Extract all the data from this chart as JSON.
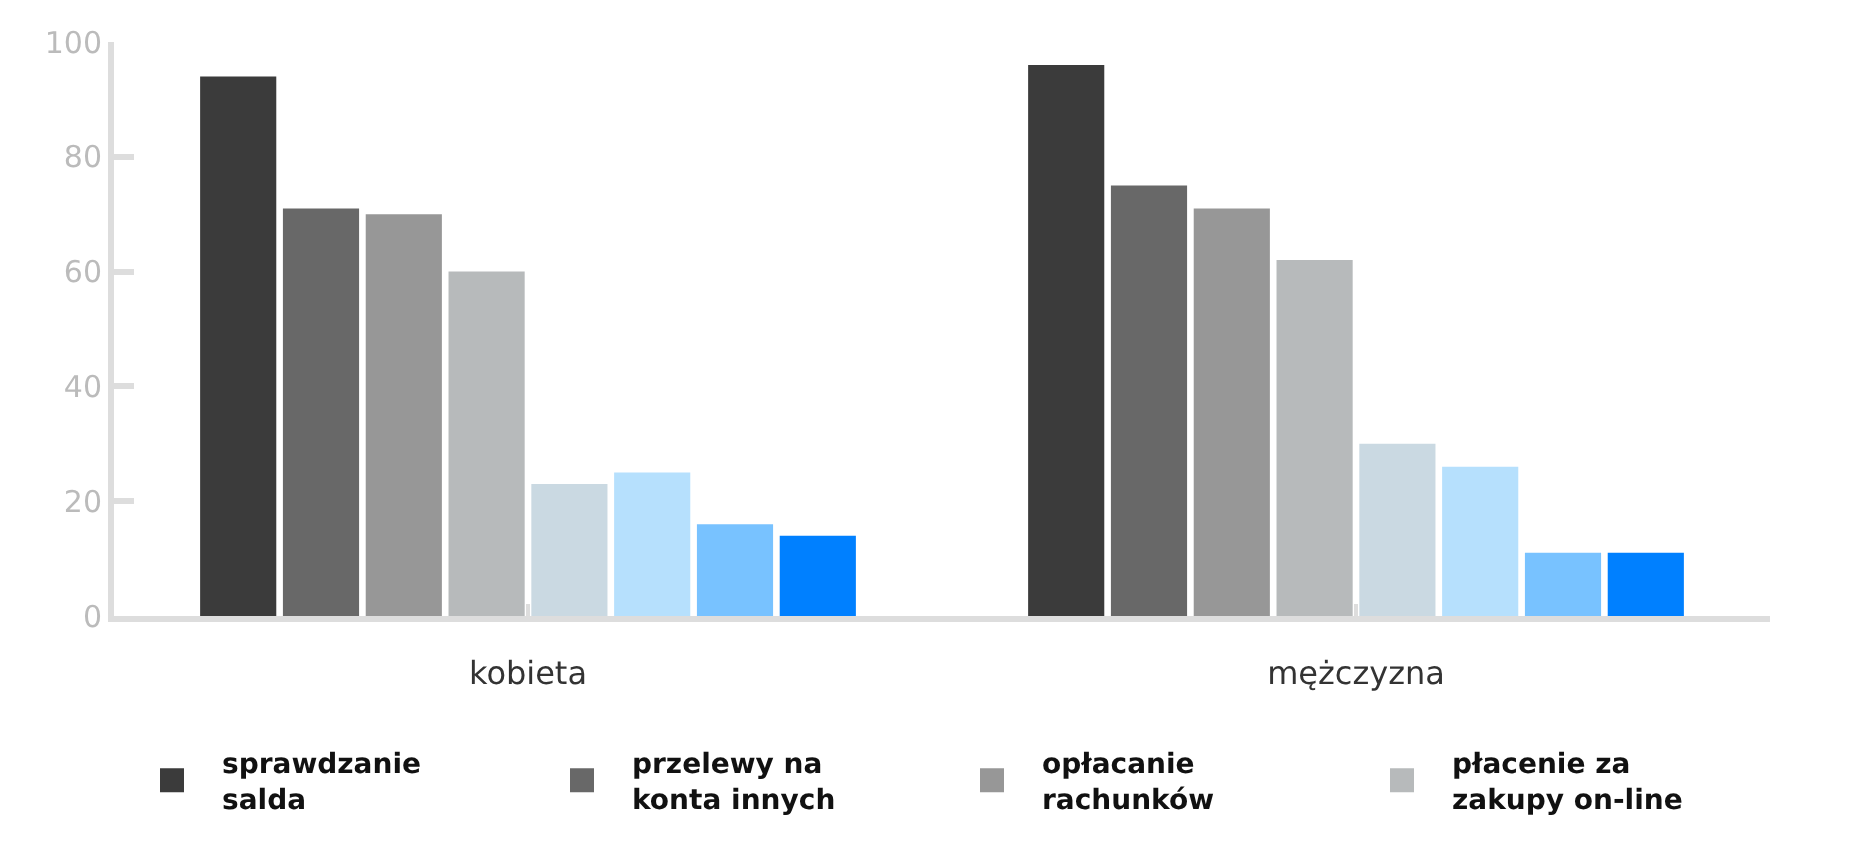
{
  "chart_data": {
    "type": "bar",
    "categories": [
      "kobieta",
      "mężczyzna"
    ],
    "series": [
      {
        "name": "sprawdzanie salda",
        "color": "#3b3b3b",
        "values": [
          94,
          96
        ]
      },
      {
        "name": "przelewy na konta innych",
        "color": "#686868",
        "values": [
          71,
          75
        ]
      },
      {
        "name": "opłacanie rachunków",
        "color": "#979797",
        "values": [
          70,
          71
        ]
      },
      {
        "name": "płacenie za zakupy on-line",
        "color": "#b7babb",
        "values": [
          60,
          62
        ]
      },
      {
        "color": "#cad9e2",
        "values": [
          23,
          30
        ]
      },
      {
        "color": "#b6e0fd",
        "values": [
          25,
          26
        ]
      },
      {
        "color": "#78c2ff",
        "values": [
          16,
          11
        ]
      },
      {
        "color": "#0080ff",
        "values": [
          14,
          11
        ]
      }
    ],
    "ylim": [
      0,
      100
    ],
    "yticks": [
      0,
      20,
      40,
      60,
      80,
      100
    ],
    "legend": "bottom"
  }
}
